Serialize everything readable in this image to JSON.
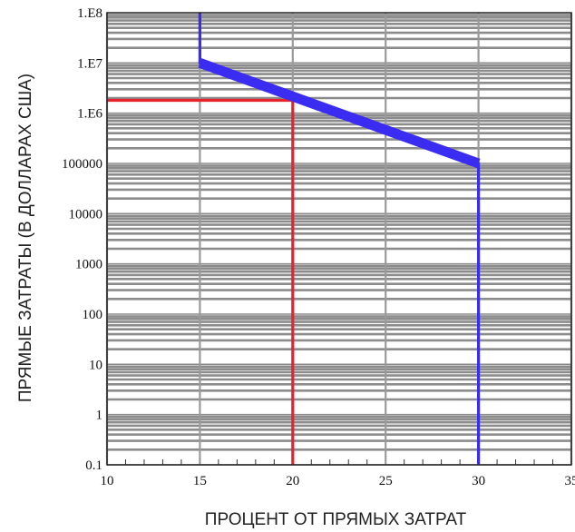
{
  "chart_data": {
    "type": "line",
    "xlabel": "ПРОЦЕНТ ОТ ПРЯМЫХ ЗАТРАТ",
    "ylabel": "ПРЯМЫЕ ЗАТРАТЫ (В ДОЛЛАРАХ США)",
    "xlim": [
      10,
      35
    ],
    "ylim_log10": [
      -1,
      8
    ],
    "y_scale": "log",
    "x_ticks": [
      {
        "value": 10,
        "label": "10"
      },
      {
        "value": 15,
        "label": "15"
      },
      {
        "value": 20,
        "label": "20"
      },
      {
        "value": 25,
        "label": "25"
      },
      {
        "value": 30,
        "label": "30"
      },
      {
        "value": 35,
        "label": "35"
      }
    ],
    "y_ticks": [
      {
        "value": 0.1,
        "label": "0.1"
      },
      {
        "value": 1,
        "label": "1"
      },
      {
        "value": 10,
        "label": "10"
      },
      {
        "value": 100,
        "label": "100"
      },
      {
        "value": 1000,
        "label": "1000"
      },
      {
        "value": 10000,
        "label": "10000"
      },
      {
        "value": 100000,
        "label": "100000"
      },
      {
        "value": 1000000,
        "label": "1.E6"
      },
      {
        "value": 10000000,
        "label": "1.E7"
      },
      {
        "value": 100000000,
        "label": "1.E8"
      }
    ],
    "grid": true,
    "series": [
      {
        "color": "#3a2cf0",
        "points": [
          {
            "x": 15,
            "y": 100000000
          },
          {
            "x": 15,
            "y": 10000000
          },
          {
            "x": 30,
            "y": 100000
          },
          {
            "x": 30,
            "y": 0.1
          }
        ]
      },
      {
        "color": "#e8212b",
        "points": [
          {
            "x": 10,
            "y": 1800000
          },
          {
            "x": 20,
            "y": 1800000
          },
          {
            "x": 20,
            "y": 0.1
          }
        ]
      }
    ]
  }
}
